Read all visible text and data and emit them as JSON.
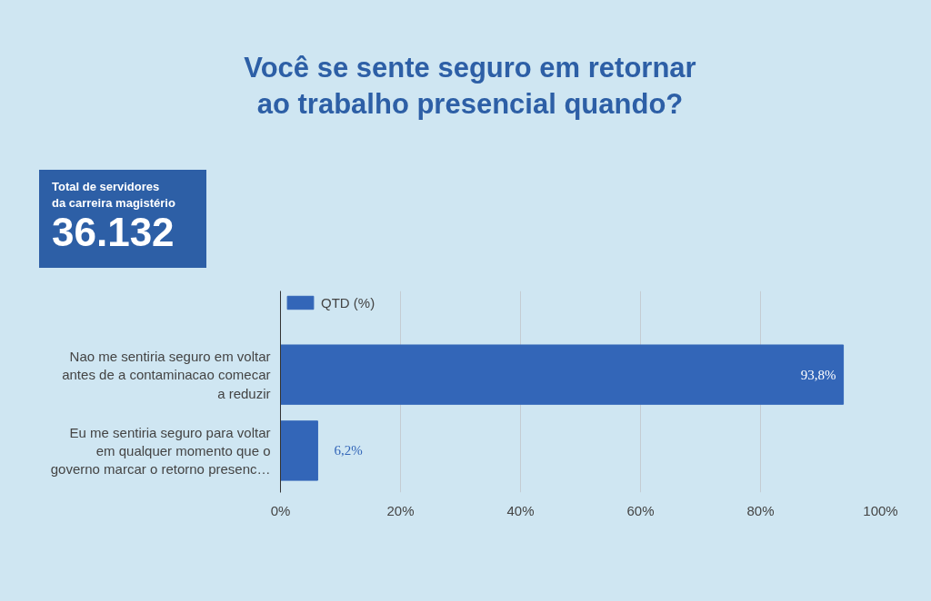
{
  "chart_data": {
    "type": "bar",
    "orientation": "horizontal",
    "title": "Você se sente seguro em retornar\nao trabalho presencial quando?",
    "categories": [
      "Nao me sentiria seguro em voltar\nantes de a contaminacao comecar\na reduzir",
      "Eu me sentiria seguro para voltar\nem qualquer momento que o\ngoverno marcar o retorno presenc…"
    ],
    "series": [
      {
        "name": "QTD (%)",
        "color": "#3366b8",
        "values": [
          93.8,
          6.2
        ]
      }
    ],
    "value_labels": [
      "93,8%",
      "6,2%"
    ],
    "xlim": [
      0,
      100
    ],
    "xticks": [
      {
        "value": 0,
        "label": "0%"
      },
      {
        "value": 20,
        "label": "20%"
      },
      {
        "value": 40,
        "label": "40%"
      },
      {
        "value": 60,
        "label": "60%"
      },
      {
        "value": 80,
        "label": "80%"
      },
      {
        "value": 100,
        "label": "100%"
      }
    ],
    "grid": "x",
    "legend": "top left",
    "annotations": [
      "Total de servidores\nda carreira magistério",
      "36.132"
    ]
  }
}
